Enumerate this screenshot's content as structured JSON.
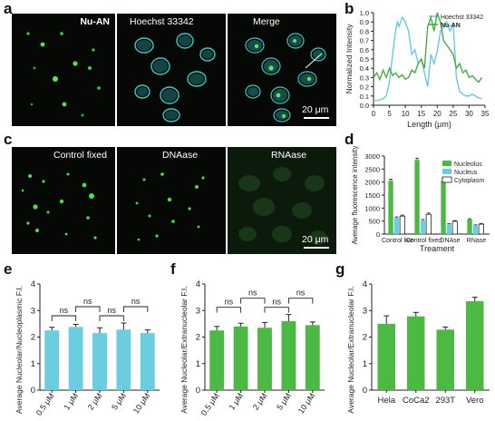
{
  "panels": {
    "a": {
      "letter": "a",
      "labels": [
        "Nu-AN",
        "Hoechst 33342",
        "Merge"
      ],
      "scalebar": "20 μm"
    },
    "c": {
      "letter": "c",
      "labels": [
        "Control fixed",
        "DNAase",
        "RNAase"
      ],
      "scalebar": "20 μm"
    },
    "b": {
      "letter": "b"
    },
    "d": {
      "letter": "d"
    },
    "e": {
      "letter": "e"
    },
    "f": {
      "letter": "f"
    },
    "g": {
      "letter": "g"
    }
  },
  "chart_data": [
    {
      "id": "b",
      "type": "line",
      "xlabel": "Length (μm)",
      "ylabel": "Normalized Intensity",
      "xlim": [
        0,
        35
      ],
      "ylim": [
        0,
        1.0
      ],
      "xticks": [
        0,
        5,
        10,
        15,
        20,
        25,
        30,
        35
      ],
      "yticks": [
        0.0,
        0.1,
        0.2,
        0.3,
        0.4,
        0.5,
        0.6,
        0.7,
        0.8,
        0.9,
        1.0
      ],
      "legend_position": "top-right",
      "series": [
        {
          "name": "Hoechst 33342",
          "color": "#5bc8e0",
          "x": [
            0,
            1,
            2,
            3,
            4,
            5,
            6,
            7,
            7.5,
            8,
            9,
            10,
            11,
            12,
            13,
            14,
            15,
            16,
            17,
            18,
            19,
            20,
            21,
            22,
            23,
            24,
            25,
            25.5,
            26,
            27,
            28,
            29,
            30,
            31,
            32,
            33,
            34
          ],
          "y": [
            0.05,
            0.05,
            0.06,
            0.07,
            0.1,
            0.25,
            0.55,
            0.82,
            0.9,
            0.85,
            0.95,
            0.9,
            0.8,
            0.55,
            0.6,
            0.45,
            0.5,
            0.35,
            0.2,
            0.55,
            0.45,
            0.58,
            0.8,
            0.85,
            0.9,
            0.8,
            0.88,
            0.6,
            0.3,
            0.15,
            0.12,
            0.1,
            0.1,
            0.12,
            0.1,
            0.08,
            0.07
          ]
        },
        {
          "name": "Nu-AN",
          "color": "#3aaa35",
          "x": [
            0,
            1,
            2,
            3,
            4,
            5,
            6,
            7,
            8,
            9,
            10,
            11,
            12,
            13,
            14,
            15,
            16,
            17,
            18,
            19,
            20,
            21,
            22,
            23,
            24,
            25,
            26,
            27,
            28,
            29,
            30,
            31,
            32,
            33,
            34
          ],
          "y": [
            0.3,
            0.35,
            0.28,
            0.38,
            0.3,
            0.4,
            0.32,
            0.35,
            0.3,
            0.33,
            0.28,
            0.3,
            0.38,
            0.35,
            0.45,
            0.5,
            0.4,
            0.85,
            0.95,
            0.8,
            1.0,
            0.9,
            0.7,
            0.65,
            0.6,
            0.55,
            0.4,
            0.45,
            0.35,
            0.38,
            0.3,
            0.32,
            0.28,
            0.25,
            0.3
          ]
        }
      ]
    },
    {
      "id": "d",
      "type": "bar",
      "xlabel": "Treament",
      "ylabel": "Average fluorescence intensity",
      "ylim": [
        0,
        3000
      ],
      "yticks": [
        0,
        500,
        1000,
        1500,
        2000,
        2500,
        3000
      ],
      "categories": [
        "Control live",
        "Control fixed",
        "DNAse",
        "RNase"
      ],
      "legend_position": "top-right",
      "series": [
        {
          "name": "Nucleolus",
          "color": "#4cb944",
          "values": [
            2050,
            2850,
            2050,
            560
          ],
          "errors": [
            60,
            70,
            90,
            30
          ]
        },
        {
          "name": "Nucleus",
          "color": "#6acde0",
          "values": [
            620,
            520,
            370,
            330
          ],
          "errors": [
            40,
            40,
            30,
            25
          ]
        },
        {
          "name": "Cytoplasm",
          "color": "#ffffff",
          "values": [
            690,
            760,
            490,
            380
          ],
          "errors": [
            40,
            50,
            30,
            30
          ]
        }
      ]
    },
    {
      "id": "e",
      "type": "bar",
      "ylabel": "Average Nucleolar/Nucleoplasmic F.I.",
      "ylim": [
        0,
        4
      ],
      "yticks": [
        0,
        1,
        2,
        3,
        4
      ],
      "categories": [
        "0.5 μM",
        "1 μM",
        "2 μM",
        "5 μM",
        "10 μM"
      ],
      "series": [
        {
          "color": "#6acde0",
          "values": [
            2.25,
            2.38,
            2.15,
            2.28,
            2.15
          ],
          "errors": [
            0.12,
            0.1,
            0.2,
            0.25,
            0.12
          ]
        }
      ],
      "annotations": [
        "ns",
        "ns",
        "ns",
        "ns"
      ]
    },
    {
      "id": "f",
      "type": "bar",
      "ylabel": "Average Nucleolar/Extranucleolar F.I.",
      "ylim": [
        0,
        4
      ],
      "yticks": [
        0,
        1,
        2,
        3,
        4
      ],
      "categories": [
        "0.5 μM",
        "1 μM",
        "2 μM",
        "5 μM",
        "10 μM"
      ],
      "series": [
        {
          "color": "#4cb944",
          "values": [
            2.25,
            2.4,
            2.35,
            2.6,
            2.45
          ],
          "errors": [
            0.15,
            0.12,
            0.2,
            0.25,
            0.12
          ]
        }
      ],
      "annotations": [
        "ns",
        "ns",
        "ns",
        "ns"
      ]
    },
    {
      "id": "g",
      "type": "bar",
      "ylabel": "Average Nucleolar/Extranucleolar F.I.",
      "ylim": [
        0,
        4
      ],
      "yticks": [
        0,
        1,
        2,
        3,
        4
      ],
      "categories": [
        "Hela",
        "CoCa2",
        "293T",
        "Vero"
      ],
      "series": [
        {
          "color": "#4cb944",
          "values": [
            2.5,
            2.78,
            2.28,
            3.35
          ],
          "errors": [
            0.3,
            0.15,
            0.1,
            0.15
          ]
        }
      ]
    }
  ]
}
